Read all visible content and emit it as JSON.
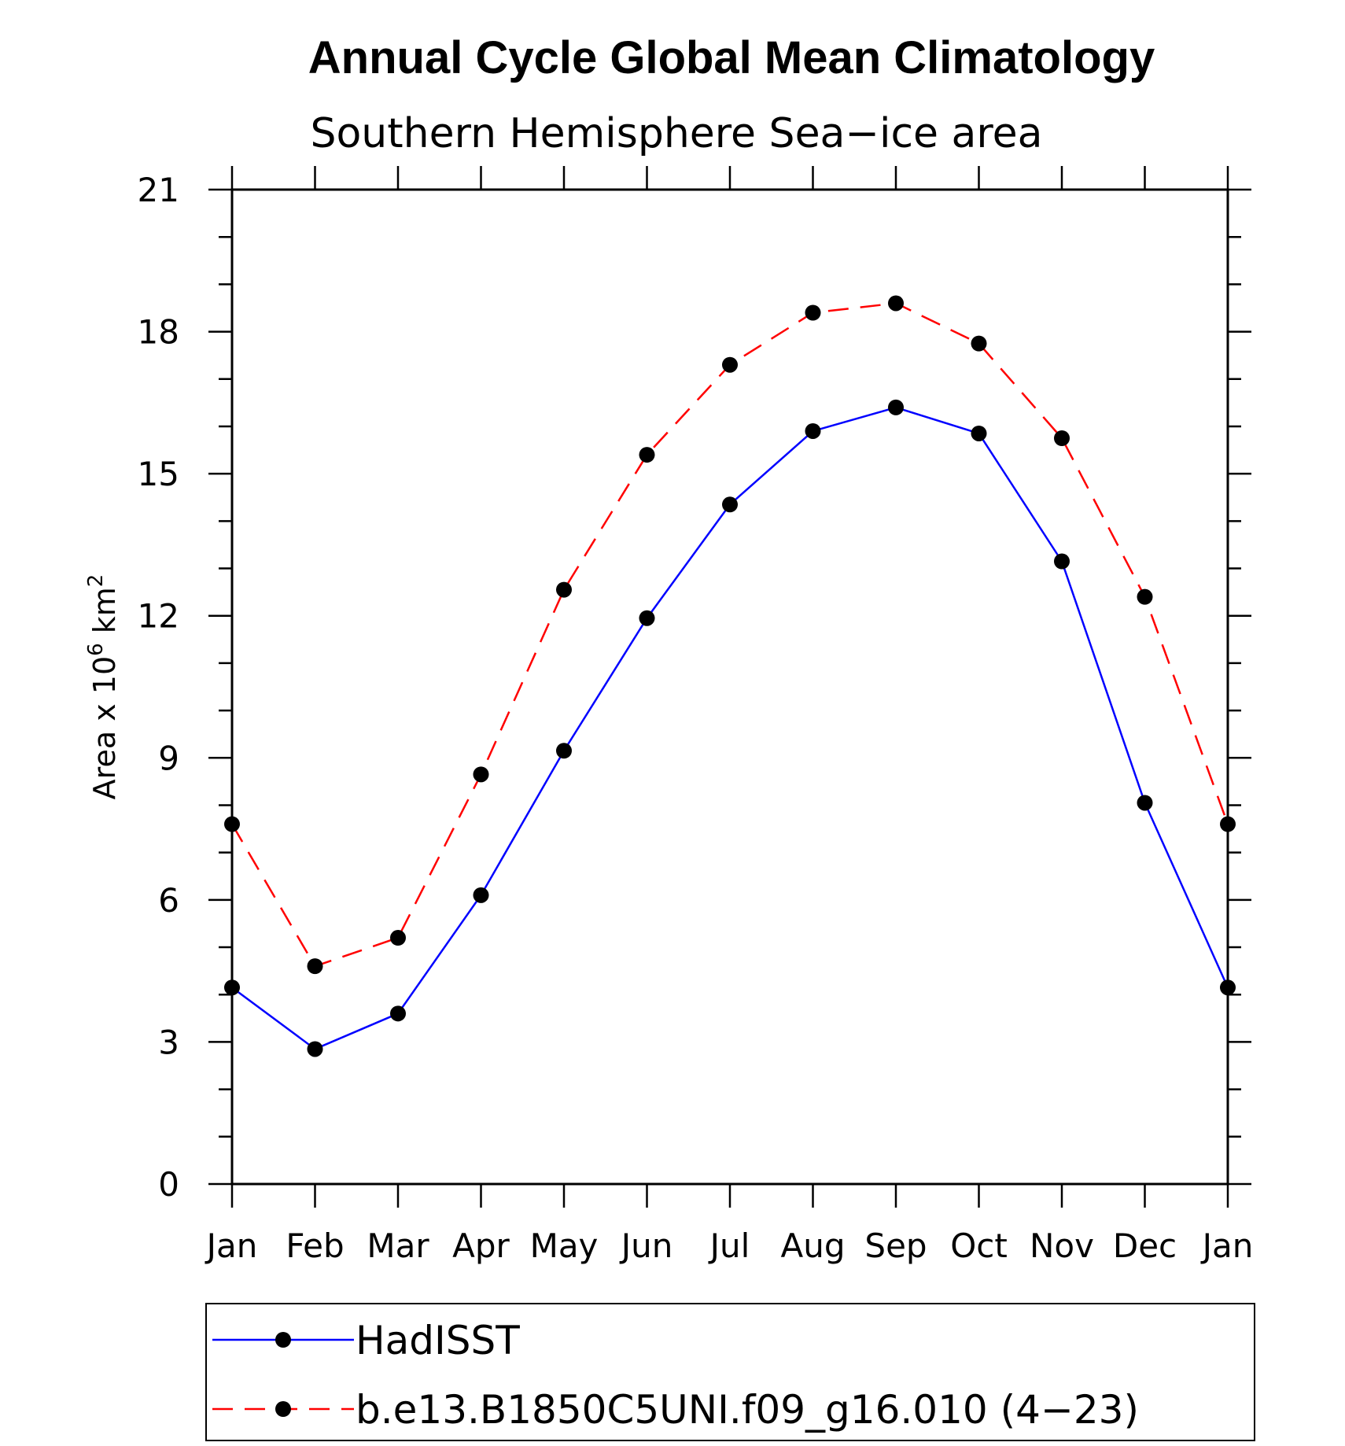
{
  "chart_data": {
    "type": "line",
    "title": "Annual Cycle Global Mean Climatology",
    "subtitle": "Southern Hemisphere Sea−ice area",
    "ylabel": "Area x 10",
    "ylabel_exp": "6",
    "ylabel_unit": "km",
    "ylabel_unit_exp": "2",
    "categories": [
      "Jan",
      "Feb",
      "Mar",
      "Apr",
      "May",
      "Jun",
      "Jul",
      "Aug",
      "Sep",
      "Oct",
      "Nov",
      "Dec",
      "Jan"
    ],
    "ylim": [
      0,
      21
    ],
    "yticks": [
      0,
      3,
      6,
      9,
      12,
      15,
      18,
      21
    ],
    "yminor_step": 1,
    "grid": false,
    "legend_position": "bottom",
    "series": [
      {
        "name": "HadISST",
        "color": "#0000ff",
        "dash": "solid",
        "values": [
          4.15,
          2.85,
          3.6,
          6.1,
          9.15,
          11.95,
          14.35,
          15.9,
          16.4,
          15.85,
          13.15,
          8.05,
          4.15
        ]
      },
      {
        "name": "b.e13.B1850C5UNI.f09_g16.010 (4−23)",
        "color": "#ff0000",
        "dash": "dashed",
        "values": [
          7.6,
          4.6,
          5.2,
          8.65,
          12.55,
          15.4,
          17.3,
          18.4,
          18.6,
          17.75,
          15.75,
          12.4,
          7.6
        ]
      }
    ]
  }
}
